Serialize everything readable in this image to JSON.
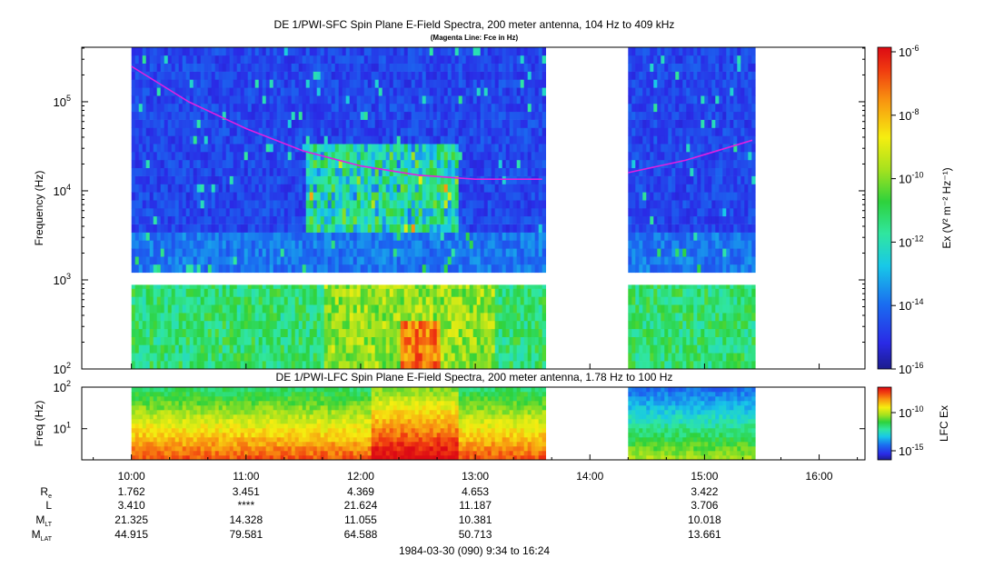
{
  "chart_data": [
    {
      "type": "heatmap",
      "title": "DE 1/PWI-SFC  Spin Plane E-Field Spectra, 200 meter antenna, 104 Hz to 409 kHz",
      "subtitle": "(Magenta Line: Fce in Hz)",
      "ylabel": "Frequency (Hz)",
      "y_scale": "log",
      "ylim": [
        100,
        409000
      ],
      "y_ticks": [
        {
          "value": 100,
          "base": "10",
          "exp": "2"
        },
        {
          "value": 1000,
          "base": "10",
          "exp": "3"
        },
        {
          "value": 10000,
          "base": "10",
          "exp": "4"
        },
        {
          "value": 100000,
          "base": "10",
          "exp": "5"
        }
      ],
      "data_coverage": [
        {
          "start": "10:00",
          "end": "13:35"
        },
        {
          "start": "14:20",
          "end": "15:25"
        }
      ],
      "colorbar": {
        "label": "Ex (V² m⁻² Hz⁻¹)",
        "scale": "log",
        "range": [
          1e-16,
          1e-06
        ],
        "ticks": [
          {
            "base": "10",
            "exp": "-6"
          },
          {
            "base": "10",
            "exp": "-8"
          },
          {
            "base": "10",
            "exp": "-10"
          },
          {
            "base": "10",
            "exp": "-12"
          },
          {
            "base": "10",
            "exp": "-14"
          },
          {
            "base": "10",
            "exp": "-16"
          }
        ]
      },
      "series": [
        {
          "name": "Fce",
          "color": "#e020e0",
          "x": [
            "10:00",
            "10:30",
            "11:00",
            "11:30",
            "12:00",
            "12:30",
            "13:00",
            "13:35",
            "14:20",
            "14:50",
            "15:25"
          ],
          "y": [
            250000,
            100000,
            50000,
            28000,
            19000,
            15000,
            13500,
            13500,
            16000,
            22000,
            37000
          ]
        }
      ]
    },
    {
      "type": "heatmap",
      "title": "DE 1/PWI-LFC  Spin Plane E-Field Spectra, 200 meter antenna, 1.78 Hz to 100 Hz",
      "ylabel": "Freq (Hz)",
      "y_scale": "log",
      "ylim": [
        1.78,
        100
      ],
      "y_ticks": [
        {
          "value": 10,
          "base": "10",
          "exp": "1"
        },
        {
          "value": 100,
          "base": "10",
          "exp": "2"
        }
      ],
      "data_coverage": [
        {
          "start": "10:00",
          "end": "13:35"
        },
        {
          "start": "14:20",
          "end": "15:25"
        }
      ],
      "colorbar": {
        "label": "LFC Ex",
        "scale": "log",
        "ticks": [
          {
            "base": "10",
            "exp": "-10"
          },
          {
            "base": "10",
            "exp": "-15"
          }
        ]
      },
      "x_ticks": [
        "10:00",
        "11:00",
        "12:00",
        "13:00",
        "14:00",
        "15:00",
        "16:00"
      ],
      "xlabel": "1984-03-30 (090) 9:34 to 16:24"
    }
  ],
  "ephemeris": {
    "labels": [
      {
        "base": "R",
        "sub": "e"
      },
      {
        "base": "L",
        "sub": ""
      },
      {
        "base": "M",
        "sub": "LT"
      },
      {
        "base": "M",
        "sub": "LAT"
      }
    ],
    "columns": [
      {
        "time": "10:00",
        "values": [
          "1.762",
          "3.410",
          "21.325",
          "44.915"
        ]
      },
      {
        "time": "11:00",
        "values": [
          "3.451",
          "****",
          "14.328",
          "79.581"
        ]
      },
      {
        "time": "12:00",
        "values": [
          "4.369",
          "21.624",
          "11.055",
          "64.588"
        ]
      },
      {
        "time": "13:00",
        "values": [
          "4.653",
          "11.187",
          "10.381",
          "50.713"
        ]
      },
      {
        "time": "15:00",
        "values": [
          "3.422",
          "3.706",
          "10.018",
          "13.661"
        ]
      }
    ]
  }
}
